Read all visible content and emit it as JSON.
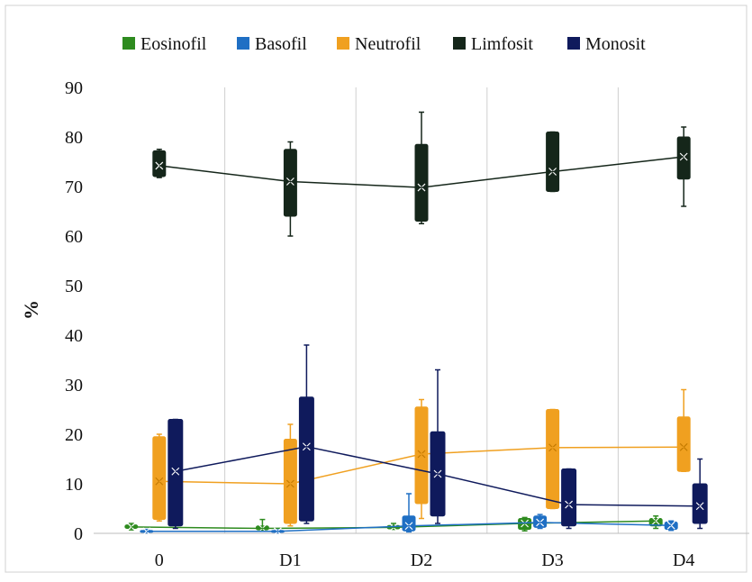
{
  "chart_data": {
    "type": "box",
    "title": "",
    "xlabel": "",
    "ylabel": "%",
    "categories": [
      "0",
      "D1",
      "D2",
      "D3",
      "D4"
    ],
    "ylim": [
      0,
      90
    ],
    "yticks": [
      0,
      10,
      20,
      30,
      40,
      50,
      60,
      70,
      80,
      90
    ],
    "grid": "vertical category separators",
    "legend_position": "top",
    "series": [
      {
        "name": "Eosinofil",
        "color": "#2e8b1f",
        "mean": [
          1.3,
          1.0,
          1.2,
          2.0,
          2.5
        ],
        "box": [
          [
            1.0,
            1.7,
            0.7,
            2.0
          ],
          [
            0.7,
            1.5,
            0.5,
            2.8
          ],
          [
            0.9,
            1.6,
            0.8,
            2.0
          ],
          [
            0.8,
            3.0,
            0.5,
            3.2
          ],
          [
            1.5,
            3.0,
            1.0,
            3.5
          ]
        ]
      },
      {
        "name": "Basofil",
        "color": "#1f6fc4",
        "mean": [
          0.4,
          0.4,
          1.5,
          2.2,
          1.6
        ],
        "box": [
          [
            0.2,
            0.6,
            0.1,
            0.8
          ],
          [
            0.2,
            0.6,
            0.1,
            0.7
          ],
          [
            0.5,
            3.5,
            0.3,
            8.0
          ],
          [
            1.2,
            3.5,
            1.0,
            3.8
          ],
          [
            0.8,
            2.3,
            0.6,
            2.5
          ]
        ]
      },
      {
        "name": "Neutrofil",
        "color": "#f0a020",
        "mean": [
          10.5,
          10.0,
          16.0,
          17.3,
          17.4
        ],
        "box": [
          [
            2.8,
            19.5,
            2.5,
            20.0
          ],
          [
            2.0,
            19.0,
            1.5,
            22.0
          ],
          [
            6.0,
            25.5,
            3.0,
            27.0
          ],
          [
            5.0,
            25.0,
            5.0,
            25.0
          ],
          [
            12.5,
            23.5,
            12.5,
            29.0
          ]
        ]
      },
      {
        "name": "Limfosit",
        "color": "#15261a",
        "mean": [
          74.2,
          71.0,
          69.8,
          73.0,
          76.0
        ],
        "box": [
          [
            72.0,
            77.2,
            71.8,
            77.5
          ],
          [
            64.0,
            77.5,
            60.0,
            79.0
          ],
          [
            63.0,
            78.5,
            62.5,
            85.0
          ],
          [
            69.0,
            81.0,
            69.0,
            81.0
          ],
          [
            71.5,
            80.0,
            66.0,
            82.0
          ]
        ]
      },
      {
        "name": "Monosit",
        "color": "#0f1a5c",
        "mean": [
          12.5,
          17.5,
          12.0,
          5.8,
          5.5
        ],
        "box": [
          [
            1.5,
            23.0,
            1.0,
            23.0
          ],
          [
            2.5,
            27.5,
            2.0,
            38.0
          ],
          [
            3.5,
            20.5,
            2.0,
            33.0
          ],
          [
            1.5,
            13.0,
            1.0,
            13.0
          ],
          [
            2.0,
            10.0,
            1.0,
            15.0
          ]
        ]
      }
    ]
  }
}
